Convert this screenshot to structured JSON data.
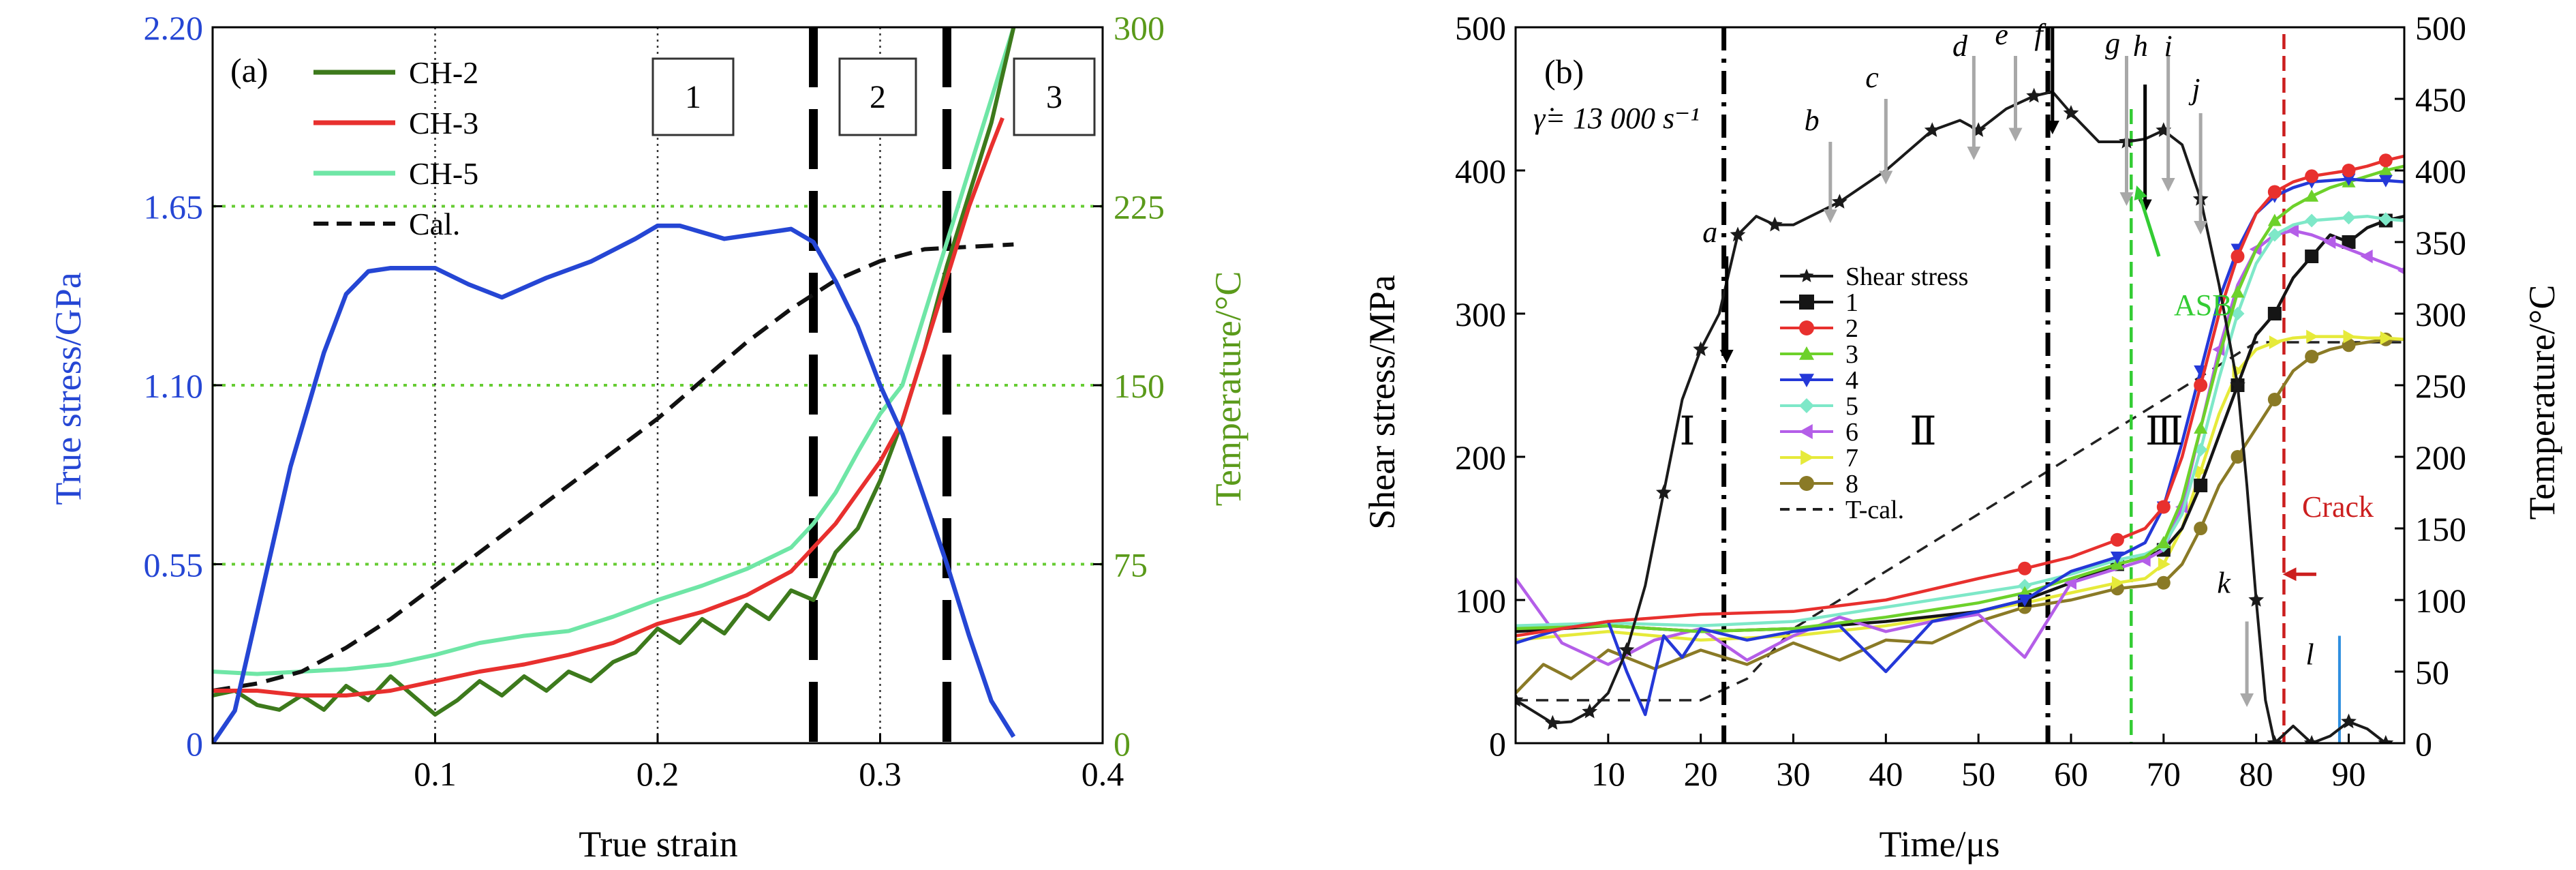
{
  "colors": {
    "stress_blue": "#2546d4",
    "temp_green": "#5a9a1a",
    "ch2": "#3d7a1c",
    "ch3": "#e8302e",
    "ch5": "#6fe6a6",
    "grid_green": "#66cc33",
    "s1": "#151515",
    "s2": "#e8302e",
    "s3": "#6dd12a",
    "s4": "#2438d8",
    "s5": "#7ee8c8",
    "s6": "#b45ee8",
    "s7": "#e6ea3a",
    "s8": "#8a7a26",
    "asb": "#33cc33",
    "crack": "#cc1f1f",
    "arrow_gray": "#a8a8a8",
    "marker_blue": "#2f8fe0"
  },
  "chart_data": [
    {
      "panel": "(a)",
      "type": "line",
      "xlabel": "True strain",
      "ylabel_left": "True stress/GPa",
      "ylabel_right": "Temperature/°C",
      "xlim": [
        0,
        0.4
      ],
      "ylim_left": [
        0,
        2.2
      ],
      "ylim_right": [
        0,
        300
      ],
      "xticks": [
        0.1,
        0.2,
        0.3,
        0.4
      ],
      "xtick_labels": [
        "0.1",
        "0.2",
        "0.3",
        "0.4"
      ],
      "yticks_left": [
        0,
        0.55,
        1.1,
        1.65,
        2.2
      ],
      "ytick_labels_left": [
        "0",
        "0.55",
        "1.10",
        "1.65",
        "2.20"
      ],
      "yticks_right": [
        0,
        75,
        150,
        225,
        300
      ],
      "ytick_labels_right": [
        "0",
        "75",
        "150",
        "225",
        "300"
      ],
      "region_labels": [
        "1",
        "2",
        "3"
      ],
      "legend": [
        "CH-2",
        "CH-3",
        "CH-5",
        "Cal."
      ],
      "stress": {
        "x": [
          0,
          0.01,
          0.02,
          0.035,
          0.05,
          0.06,
          0.07,
          0.08,
          0.1,
          0.115,
          0.13,
          0.15,
          0.17,
          0.19,
          0.2,
          0.21,
          0.23,
          0.25,
          0.26,
          0.27,
          0.28,
          0.29,
          0.3,
          0.31,
          0.32,
          0.33,
          0.34,
          0.35,
          0.36
        ],
        "y": [
          0,
          0.1,
          0.4,
          0.85,
          1.2,
          1.38,
          1.45,
          1.46,
          1.46,
          1.41,
          1.37,
          1.43,
          1.48,
          1.55,
          1.59,
          1.59,
          1.55,
          1.57,
          1.58,
          1.54,
          1.42,
          1.28,
          1.1,
          0.95,
          0.75,
          0.55,
          0.33,
          0.13,
          0.02
        ]
      },
      "series": [
        {
          "name": "CH-2",
          "x": [
            0,
            0.01,
            0.02,
            0.03,
            0.04,
            0.05,
            0.06,
            0.07,
            0.08,
            0.09,
            0.1,
            0.11,
            0.12,
            0.13,
            0.14,
            0.15,
            0.16,
            0.17,
            0.18,
            0.19,
            0.2,
            0.21,
            0.22,
            0.23,
            0.24,
            0.25,
            0.26,
            0.27,
            0.28,
            0.29,
            0.3,
            0.31,
            0.32,
            0.33,
            0.34,
            0.35,
            0.36
          ],
          "y": [
            20,
            22,
            16,
            14,
            20,
            14,
            24,
            18,
            28,
            20,
            12,
            18,
            26,
            20,
            28,
            22,
            30,
            26,
            34,
            38,
            48,
            42,
            52,
            46,
            58,
            52,
            64,
            60,
            80,
            90,
            110,
            135,
            165,
            200,
            230,
            260,
            300
          ]
        },
        {
          "name": "CH-3",
          "x": [
            0,
            0.02,
            0.04,
            0.06,
            0.08,
            0.1,
            0.12,
            0.14,
            0.16,
            0.18,
            0.2,
            0.22,
            0.24,
            0.26,
            0.27,
            0.28,
            0.29,
            0.3,
            0.31,
            0.32,
            0.33,
            0.34,
            0.35,
            0.355
          ],
          "y": [
            22,
            22,
            20,
            20,
            22,
            26,
            30,
            33,
            37,
            42,
            50,
            55,
            62,
            72,
            82,
            92,
            105,
            118,
            135,
            165,
            195,
            225,
            250,
            262
          ]
        },
        {
          "name": "CH-5",
          "x": [
            0,
            0.02,
            0.04,
            0.06,
            0.08,
            0.1,
            0.12,
            0.14,
            0.16,
            0.18,
            0.2,
            0.22,
            0.24,
            0.26,
            0.27,
            0.28,
            0.29,
            0.3,
            0.31,
            0.32,
            0.33,
            0.34,
            0.35,
            0.36
          ],
          "y": [
            30,
            29,
            30,
            31,
            33,
            37,
            42,
            45,
            47,
            53,
            60,
            66,
            73,
            82,
            92,
            105,
            122,
            138,
            150,
            180,
            210,
            240,
            270,
            300
          ]
        },
        {
          "name": "Cal.",
          "dashed": true,
          "x": [
            0,
            0.02,
            0.04,
            0.06,
            0.08,
            0.1,
            0.12,
            0.14,
            0.16,
            0.18,
            0.2,
            0.22,
            0.24,
            0.26,
            0.28,
            0.3,
            0.32,
            0.34,
            0.36
          ],
          "y": [
            22,
            25,
            30,
            40,
            52,
            66,
            80,
            94,
            108,
            122,
            136,
            152,
            168,
            182,
            194,
            202,
            207,
            208,
            209
          ]
        }
      ],
      "vlines_dotted": [
        0.1,
        0.2,
        0.3
      ],
      "vlines_dashed_bold": [
        0.27,
        0.33
      ]
    },
    {
      "panel": "(b)",
      "type": "line",
      "xlabel": "Time/μs",
      "ylabel_left": "Shear stress/MPa",
      "ylabel_right": "Temperature/°C",
      "xlim": [
        0,
        96
      ],
      "ylim_left": [
        0,
        500
      ],
      "ylim_right": [
        0,
        500
      ],
      "xticks": [
        10,
        20,
        30,
        40,
        50,
        60,
        70,
        80,
        90
      ],
      "xtick_labels": [
        "10",
        "20",
        "30",
        "40",
        "50",
        "60",
        "70",
        "80",
        "90"
      ],
      "yticks_left": [
        0,
        100,
        200,
        300,
        400,
        500
      ],
      "ytick_labels_left": [
        "0",
        "100",
        "200",
        "300",
        "400",
        "500"
      ],
      "yticks_right": [
        0,
        50,
        100,
        150,
        200,
        250,
        300,
        350,
        400,
        450,
        500
      ],
      "ytick_labels_right": [
        "0",
        "50",
        "100",
        "150",
        "200",
        "250",
        "300",
        "350",
        "400",
        "450",
        "500"
      ],
      "strain_rate_label": "γ̇= 13 000 s⁻¹",
      "region_labels": [
        "Ⅰ",
        "Ⅱ",
        "Ⅲ"
      ],
      "point_labels": [
        "a",
        "b",
        "c",
        "d",
        "e",
        "f",
        "g",
        "h",
        "i",
        "j",
        "k",
        "l"
      ],
      "asb_label": "ASB",
      "crack_label": "Crack",
      "legend": [
        "Shear stress",
        "1",
        "2",
        "3",
        "4",
        "5",
        "6",
        "7",
        "8",
        "T-cal."
      ],
      "shear_stress": {
        "x": [
          0,
          2,
          4,
          6,
          8,
          10,
          12,
          14,
          16,
          18,
          20,
          22,
          24,
          26,
          28,
          30,
          35,
          40,
          45,
          48,
          50,
          53,
          56,
          58,
          60,
          63,
          66,
          68,
          70,
          72,
          74,
          76,
          78,
          79,
          80,
          81,
          82,
          84,
          86,
          88,
          90,
          92,
          94
        ],
        "y": [
          30,
          22,
          14,
          15,
          22,
          35,
          65,
          110,
          175,
          240,
          275,
          300,
          355,
          368,
          362,
          362,
          378,
          400,
          428,
          435,
          428,
          443,
          452,
          455,
          440,
          420,
          420,
          422,
          428,
          418,
          380,
          320,
          250,
          180,
          100,
          30,
          0,
          12,
          0,
          5,
          15,
          10,
          0
        ]
      },
      "series": [
        {
          "name": "1",
          "x": [
            0,
            10,
            20,
            30,
            40,
            50,
            55,
            60,
            65,
            68,
            70,
            72,
            74,
            76,
            78,
            80,
            82,
            84,
            86,
            88,
            90,
            92,
            94,
            96
          ],
          "y": [
            78,
            82,
            78,
            80,
            85,
            92,
            100,
            112,
            125,
            130,
            135,
            150,
            180,
            215,
            250,
            285,
            300,
            325,
            340,
            355,
            350,
            360,
            365,
            368
          ]
        },
        {
          "name": "2",
          "x": [
            0,
            10,
            20,
            30,
            40,
            50,
            55,
            60,
            65,
            68,
            70,
            72,
            74,
            76,
            78,
            80,
            82,
            84,
            86,
            88,
            90,
            92,
            94,
            96
          ],
          "y": [
            75,
            85,
            90,
            92,
            100,
            115,
            122,
            130,
            142,
            150,
            165,
            200,
            250,
            300,
            340,
            370,
            385,
            392,
            396,
            398,
            400,
            403,
            407,
            410
          ]
        },
        {
          "name": "3",
          "x": [
            0,
            10,
            20,
            30,
            40,
            50,
            55,
            60,
            65,
            68,
            70,
            72,
            74,
            76,
            78,
            80,
            82,
            84,
            86,
            88,
            90,
            92,
            94,
            96
          ],
          "y": [
            80,
            82,
            78,
            80,
            88,
            98,
            105,
            115,
            125,
            130,
            140,
            170,
            220,
            270,
            315,
            345,
            365,
            375,
            382,
            388,
            392,
            396,
            400,
            403
          ]
        },
        {
          "name": "4",
          "x": [
            0,
            5,
            10,
            12,
            14,
            16,
            18,
            20,
            25,
            30,
            35,
            40,
            45,
            50,
            55,
            60,
            65,
            68,
            70,
            72,
            74,
            76,
            78,
            80,
            82,
            84,
            86,
            88,
            90,
            92,
            94,
            96
          ],
          "y": [
            70,
            80,
            85,
            50,
            20,
            75,
            60,
            80,
            72,
            78,
            82,
            50,
            85,
            92,
            100,
            120,
            130,
            140,
            165,
            210,
            260,
            310,
            345,
            370,
            382,
            388,
            392,
            393,
            394,
            393,
            393,
            392
          ]
        },
        {
          "name": "5",
          "x": [
            0,
            10,
            20,
            30,
            40,
            50,
            55,
            60,
            65,
            68,
            70,
            72,
            74,
            76,
            78,
            80,
            82,
            84,
            86,
            88,
            90,
            92,
            94,
            96
          ],
          "y": [
            82,
            84,
            82,
            85,
            95,
            105,
            110,
            118,
            128,
            132,
            138,
            160,
            205,
            255,
            300,
            335,
            355,
            362,
            365,
            366,
            367,
            368,
            366,
            365
          ]
        },
        {
          "name": "6",
          "x": [
            0,
            5,
            10,
            15,
            20,
            25,
            30,
            35,
            40,
            45,
            50,
            55,
            60,
            65,
            68,
            70,
            72,
            74,
            76,
            78,
            80,
            82,
            84,
            86,
            88,
            90,
            92,
            94,
            96
          ],
          "y": [
            115,
            70,
            55,
            72,
            80,
            58,
            75,
            88,
            78,
            85,
            90,
            60,
            112,
            122,
            128,
            135,
            165,
            220,
            275,
            320,
            345,
            355,
            358,
            355,
            350,
            345,
            340,
            335,
            330
          ]
        },
        {
          "name": "7",
          "x": [
            0,
            10,
            20,
            30,
            40,
            50,
            55,
            60,
            65,
            68,
            70,
            72,
            74,
            76,
            78,
            80,
            82,
            84,
            86,
            88,
            90,
            92,
            94,
            96
          ],
          "y": [
            72,
            78,
            72,
            75,
            82,
            92,
            98,
            105,
            112,
            115,
            125,
            150,
            190,
            230,
            260,
            275,
            280,
            283,
            284,
            284,
            284,
            283,
            283,
            282
          ]
        },
        {
          "name": "8",
          "x": [
            0,
            3,
            6,
            10,
            15,
            20,
            25,
            30,
            35,
            40,
            45,
            50,
            55,
            60,
            65,
            68,
            70,
            72,
            74,
            76,
            78,
            80,
            82,
            84,
            86,
            88,
            90,
            92,
            94,
            96
          ],
          "y": [
            35,
            55,
            45,
            65,
            52,
            65,
            55,
            70,
            58,
            72,
            70,
            85,
            95,
            100,
            108,
            110,
            112,
            125,
            150,
            180,
            200,
            220,
            240,
            260,
            270,
            275,
            278,
            280,
            282,
            282
          ]
        },
        {
          "name": "T-cal.",
          "dashed": true,
          "x": [
            0,
            10,
            20,
            25,
            30,
            40,
            50,
            60,
            70,
            80,
            90,
            96
          ],
          "y": [
            30,
            30,
            30,
            45,
            80,
            120,
            160,
            200,
            240,
            280,
            280,
            280
          ]
        }
      ],
      "vlines_dashdot": [
        22.5,
        57.5
      ],
      "asb_x": 66.5,
      "crack_x": 83,
      "marker_l_x": 89
    }
  ]
}
